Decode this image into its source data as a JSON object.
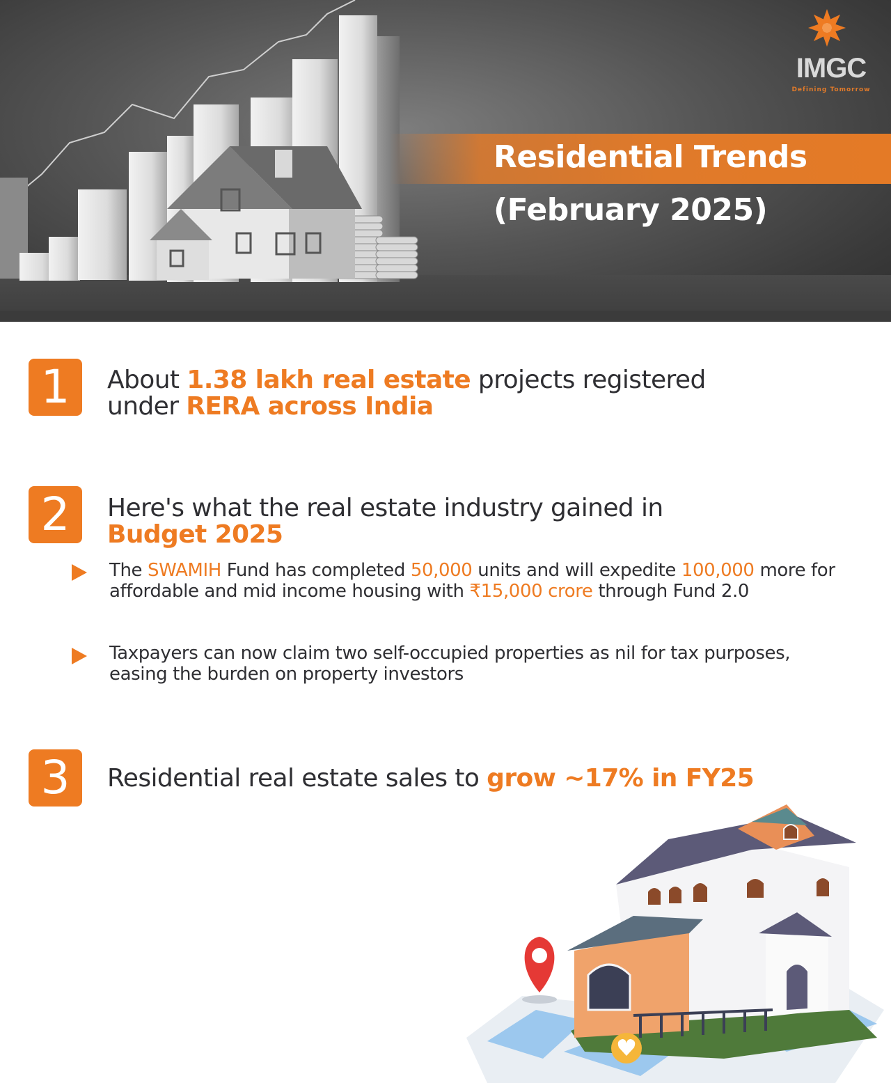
{
  "logo": {
    "word": "IMGC",
    "tagline": "Defining Tomorrow",
    "brand_color": "#ee7b22"
  },
  "hero": {
    "title_line1": "Residential Trends",
    "title_line2": "(February 2025)"
  },
  "points": [
    {
      "number": "1",
      "heading": {
        "t1": "About ",
        "h1": "1.38 lakh real estate",
        "t2": " projects registered under ",
        "h2": "RERA across India"
      }
    },
    {
      "number": "2",
      "heading": {
        "t1": "Here's what the real estate industry gained in ",
        "h1": "Budget 2025"
      },
      "bullets": [
        {
          "t1": "The ",
          "h1": "SWAMIH",
          "t2": " Fund has completed ",
          "h2": "50,000",
          "t3": " units and will expedite ",
          "h3": "100,000",
          "t4": " more for affordable and mid income housing with ",
          "h4": "₹15,000 crore",
          "t5": " through Fund 2.0"
        },
        {
          "t1": "Taxpayers can now claim two self-occupied properties as nil for tax purposes, easing the burden on property investors"
        }
      ]
    },
    {
      "number": "3",
      "heading": {
        "t1": "Residential real estate sales to ",
        "h1": "grow ~17% in FY25"
      }
    }
  ],
  "icons": {
    "hero_illustration": "house-and-bar-chart-illustration",
    "logo_mark": "orange-flower-logo-icon",
    "bottom_illustration": "house-with-location-pin-illustration"
  }
}
